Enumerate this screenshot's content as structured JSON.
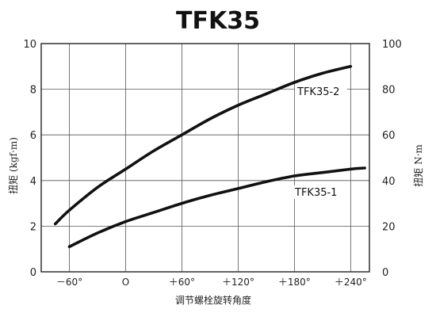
{
  "chart_data": {
    "type": "line",
    "title": "TFK35",
    "xlabel": "调节螺栓旋转角度",
    "ylabel_left": "扭矩 (kgf·m)",
    "ylabel_right": "扭矩 N·m",
    "x_tick_labels": [
      "－60°",
      "O",
      "＋60°",
      "＋120°",
      "＋180°",
      "＋240°"
    ],
    "x_ticks": [
      -60,
      0,
      60,
      120,
      180,
      240
    ],
    "xlim": [
      -90,
      260
    ],
    "y_left_ticks": [
      "0",
      "2",
      "4",
      "6",
      "8",
      "10"
    ],
    "y_left_lim": [
      0,
      10
    ],
    "y_right_ticks": [
      "0",
      "20",
      "40",
      "60",
      "80",
      "100"
    ],
    "y_right_lim": [
      0,
      100
    ],
    "grid": true,
    "series": [
      {
        "name": "TFK35-2",
        "x": [
          -75,
          -60,
          -30,
          0,
          30,
          60,
          90,
          120,
          150,
          180,
          210,
          240
        ],
        "values": [
          2.1,
          2.7,
          3.7,
          4.5,
          5.3,
          6.0,
          6.7,
          7.3,
          7.8,
          8.3,
          8.7,
          9.0
        ]
      },
      {
        "name": "TFK35-1",
        "x": [
          -60,
          -30,
          0,
          30,
          60,
          90,
          120,
          150,
          180,
          210,
          240,
          255
        ],
        "values": [
          1.1,
          1.7,
          2.2,
          2.6,
          3.0,
          3.35,
          3.65,
          3.95,
          4.2,
          4.35,
          4.5,
          4.55
        ]
      }
    ]
  }
}
